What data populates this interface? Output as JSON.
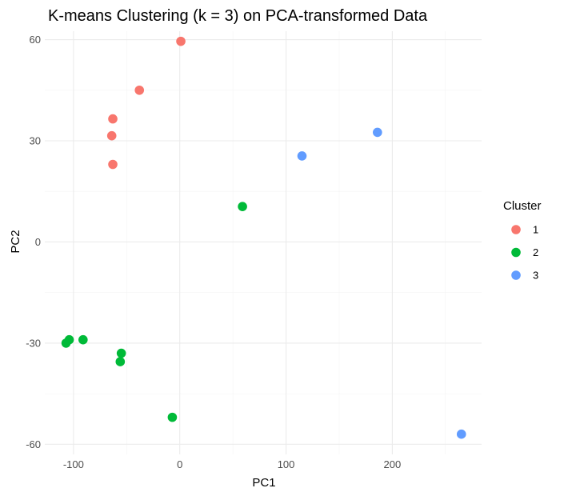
{
  "chart_data": {
    "type": "scatter",
    "title": "K-means Clustering (k = 3) on PCA-transformed Data",
    "xlabel": "PC1",
    "ylabel": "PC2",
    "xlim": [
      -127,
      284
    ],
    "ylim": [
      -63,
      62.5
    ],
    "xticks": [
      -100,
      0,
      100,
      200
    ],
    "yticks": [
      -60,
      -30,
      0,
      30,
      60
    ],
    "xtick_labels": [
      "-100",
      "0",
      "100",
      "200"
    ],
    "ytick_labels": [
      "-60",
      "-30",
      "0",
      "30",
      "60"
    ],
    "grid": true,
    "legend": {
      "title": "Cluster",
      "placement": "right",
      "entries": [
        "1",
        "2",
        "3"
      ]
    },
    "series": [
      {
        "name": "1",
        "color": "#F8766D",
        "points": [
          {
            "x": 1,
            "y": 59.5
          },
          {
            "x": -38,
            "y": 45
          },
          {
            "x": -63,
            "y": 36.5
          },
          {
            "x": -64,
            "y": 31.5
          },
          {
            "x": -63,
            "y": 23
          }
        ]
      },
      {
        "name": "2",
        "color": "#00BA38",
        "points": [
          {
            "x": 59,
            "y": 10.5
          },
          {
            "x": -107,
            "y": -30
          },
          {
            "x": -104,
            "y": -29
          },
          {
            "x": -91,
            "y": -29
          },
          {
            "x": -55,
            "y": -33
          },
          {
            "x": -56,
            "y": -35.5
          },
          {
            "x": -7,
            "y": -52
          }
        ]
      },
      {
        "name": "3",
        "color": "#619CFF",
        "points": [
          {
            "x": 115,
            "y": 25.5
          },
          {
            "x": 186,
            "y": 32.5
          },
          {
            "x": 265,
            "y": -57
          }
        ]
      }
    ]
  }
}
